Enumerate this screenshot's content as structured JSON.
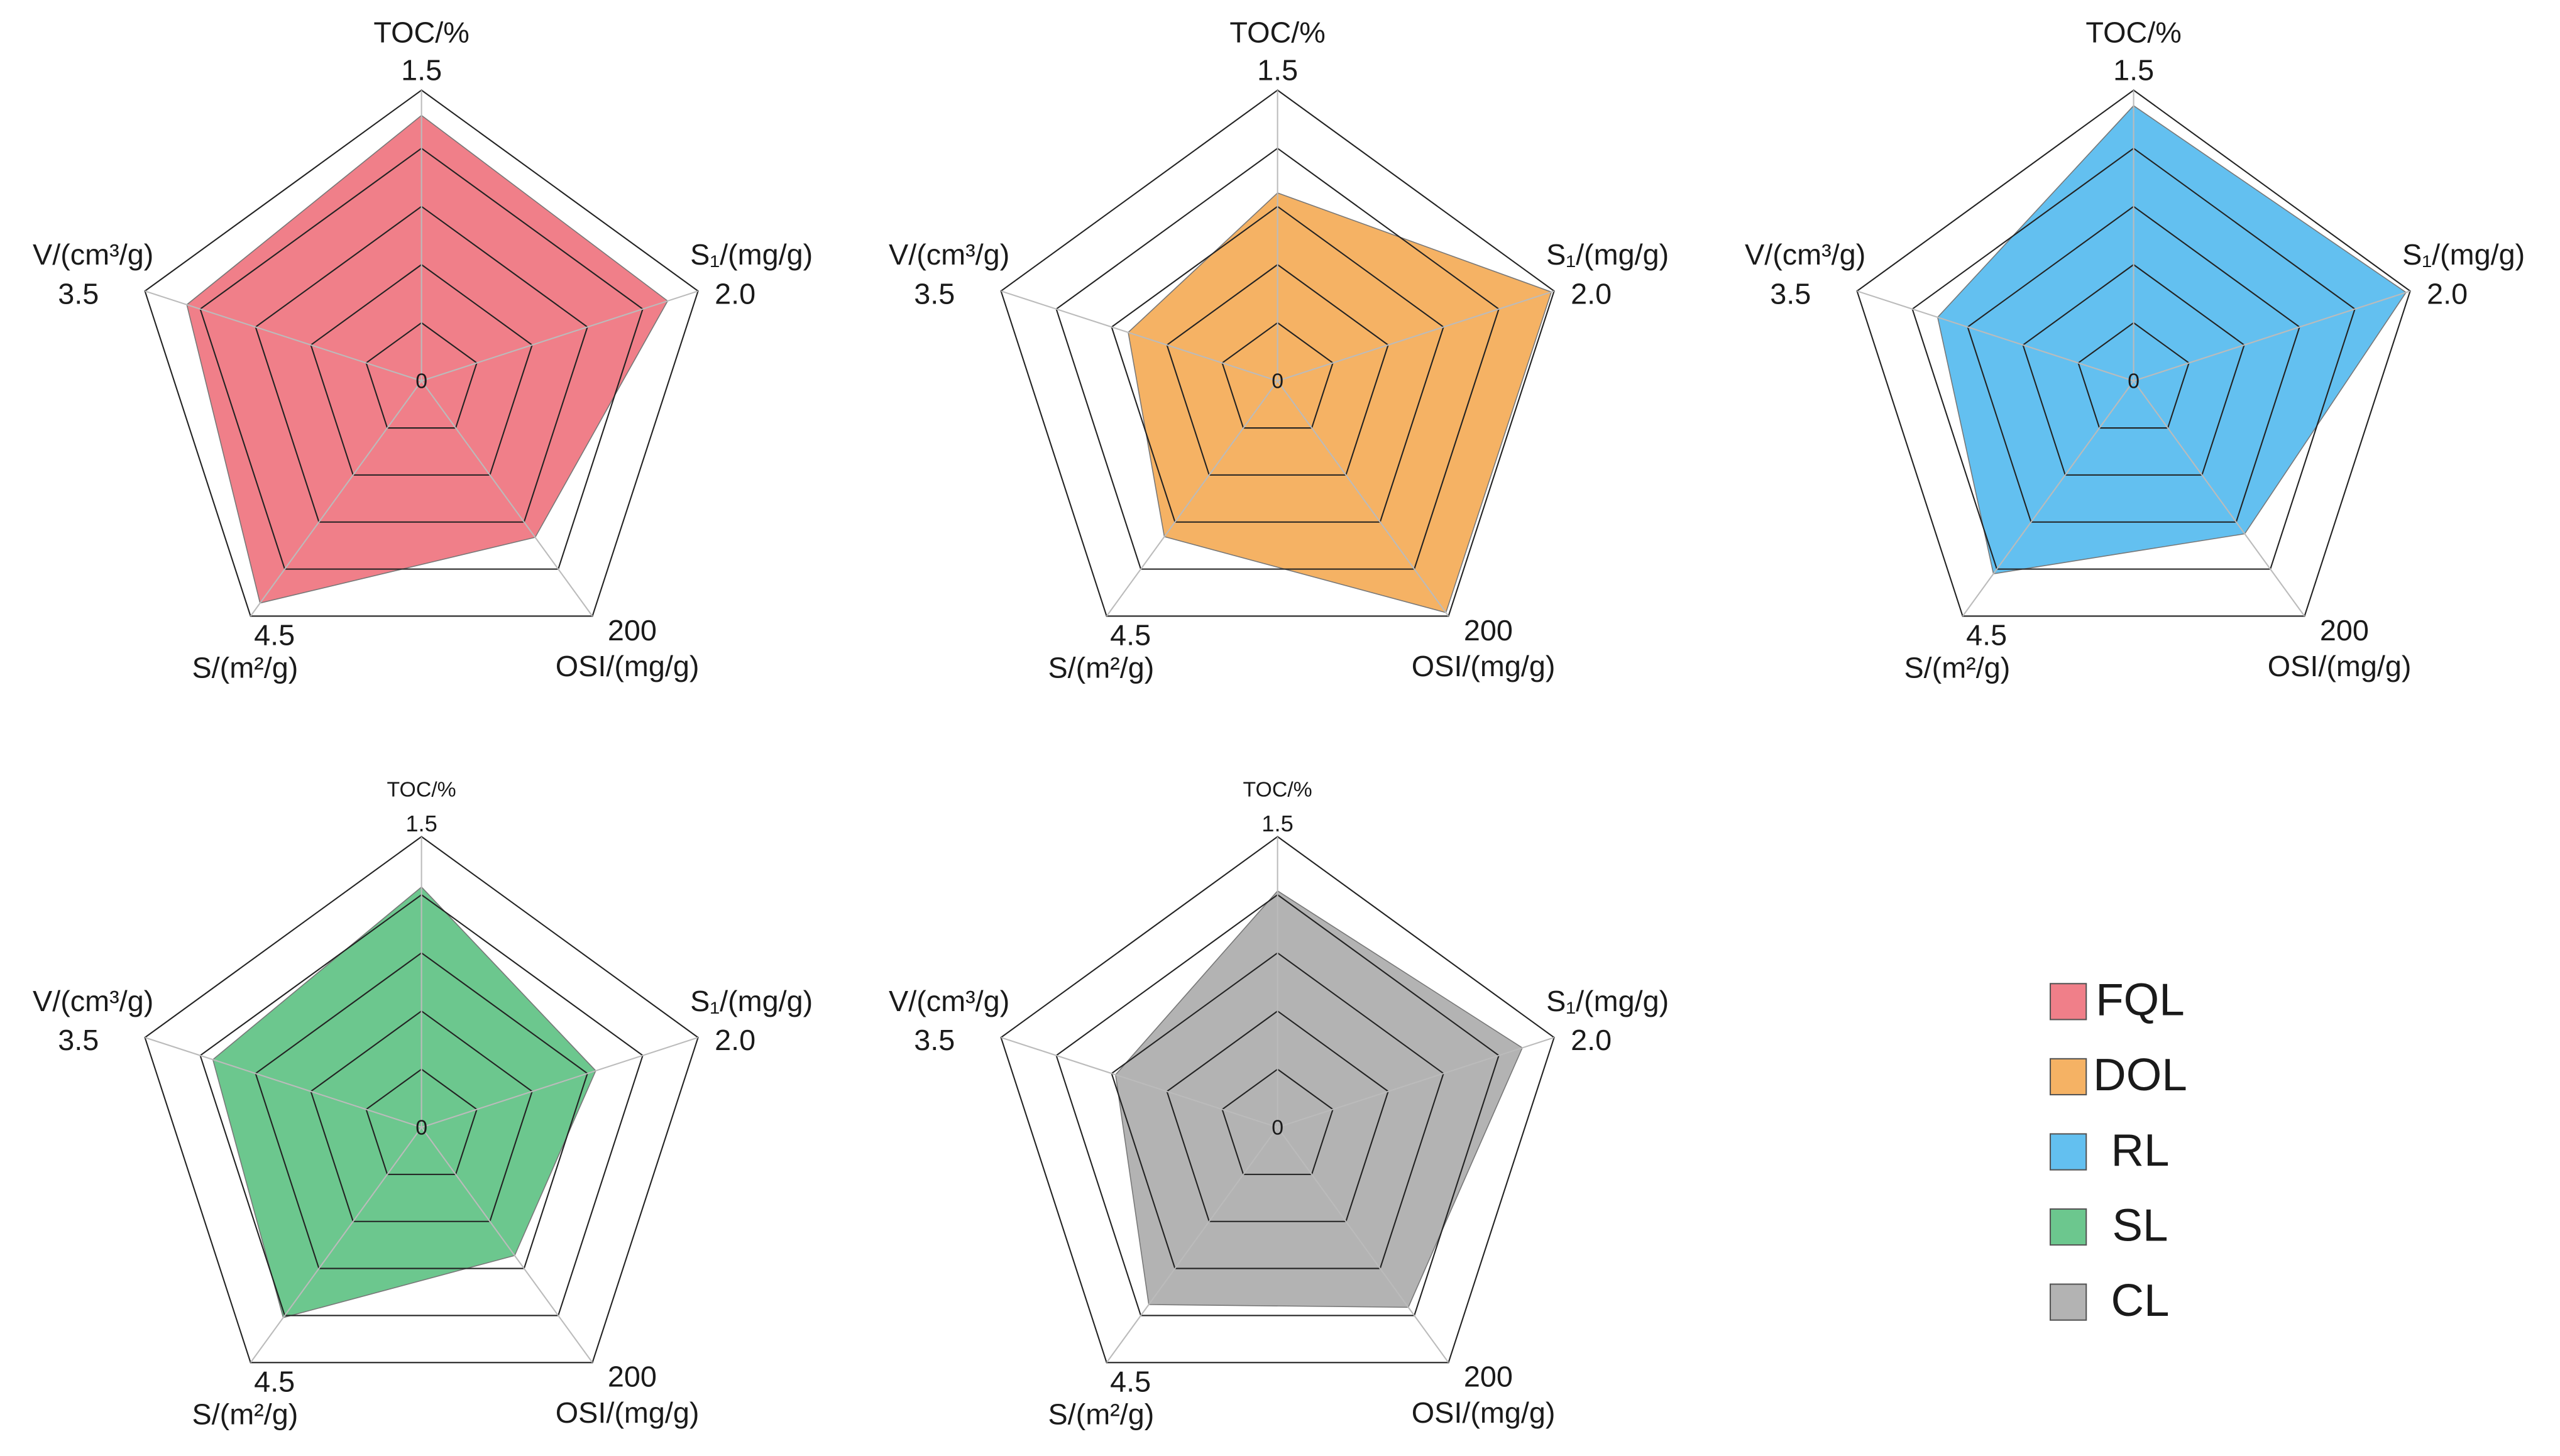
{
  "chart_data": [
    {
      "type": "radar",
      "rings": 5,
      "axes": [
        {
          "label": "TOC/%",
          "ticks": [
            0,
            1.5
          ]
        },
        {
          "label": "S₁/(mg/g)",
          "ticks": [
            0,
            {
              "value": 2,
              "label": "2.0"
            }
          ]
        },
        {
          "label": "OSI/(mg/g)",
          "ticks": [
            0,
            200
          ]
        },
        {
          "label": "S/(m²/g)",
          "ticks": [
            0,
            4.5
          ]
        },
        {
          "label": "V/(cm³/g)",
          "ticks": [
            0,
            3.5
          ]
        }
      ],
      "series": [
        {
          "name": "FQL",
          "color": "#f07f89",
          "values": [
            1.37,
            1.78,
            133,
            4.25,
            2.97
          ]
        }
      ]
    },
    {
      "type": "radar",
      "rings": 5,
      "axes": [
        {
          "label": "TOC/%",
          "ticks": [
            0,
            1.5
          ]
        },
        {
          "label": "S₁/(mg/g)",
          "ticks": [
            0,
            {
              "value": 2,
              "label": "2.0"
            }
          ]
        },
        {
          "label": "OSI/(mg/g)",
          "ticks": [
            0,
            200
          ]
        },
        {
          "label": "S/(m²/g)",
          "ticks": [
            0,
            4.5
          ]
        },
        {
          "label": "V/(cm³/g)",
          "ticks": [
            0,
            3.5
          ]
        }
      ],
      "series": [
        {
          "name": "DOL",
          "color": "#f5b264",
          "values": [
            0.97,
            1.98,
            197,
            2.98,
            1.89
          ]
        }
      ]
    },
    {
      "type": "radar",
      "rings": 5,
      "axes": [
        {
          "label": "TOC/%",
          "ticks": [
            0,
            1.5
          ]
        },
        {
          "label": "S₁/(mg/g)",
          "ticks": [
            0,
            {
              "value": 2,
              "label": "2.0"
            }
          ]
        },
        {
          "label": "OSI/(mg/g)",
          "ticks": [
            0,
            200
          ]
        },
        {
          "label": "S/(m²/g)",
          "ticks": [
            0,
            4.5
          ]
        },
        {
          "label": "V/(cm³/g)",
          "ticks": [
            0,
            3.5
          ]
        }
      ],
      "series": [
        {
          "name": "RL",
          "color": "#63c0f0",
          "values": [
            1.42,
            1.97,
            130,
            3.69,
            2.48
          ]
        }
      ]
    },
    {
      "type": "radar",
      "rings": 5,
      "axes": [
        {
          "label": "TOC/%",
          "ticks": [
            0,
            1.5
          ]
        },
        {
          "label": "S₁/(mg/g)",
          "ticks": [
            0,
            {
              "value": 2,
              "label": "2.0"
            }
          ]
        },
        {
          "label": "OSI/(mg/g)",
          "ticks": [
            0,
            200
          ]
        },
        {
          "label": "S/(m²/g)",
          "ticks": [
            0,
            4.5
          ]
        },
        {
          "label": "V/(cm³/g)",
          "ticks": [
            0,
            3.5
          ]
        }
      ],
      "series": [
        {
          "name": "SL",
          "color": "#6cc78e",
          "values": [
            1.24,
            1.26,
            109,
            3.64,
            2.64
          ]
        }
      ]
    },
    {
      "type": "radar",
      "rings": 5,
      "axes": [
        {
          "label": "TOC/%",
          "ticks": [
            0,
            1.5
          ]
        },
        {
          "label": "S₁/(mg/g)",
          "ticks": [
            0,
            {
              "value": 2,
              "label": "2.0"
            }
          ]
        },
        {
          "label": "OSI/(mg/g)",
          "ticks": [
            0,
            200
          ]
        },
        {
          "label": "S/(m²/g)",
          "ticks": [
            0,
            4.5
          ]
        },
        {
          "label": "V/(cm³/g)",
          "ticks": [
            0,
            3.5
          ]
        }
      ],
      "series": [
        {
          "name": "CL",
          "color": "#b3b3b3",
          "values": [
            1.22,
            1.77,
            153,
            3.39,
            2.05
          ]
        }
      ]
    }
  ]
}
